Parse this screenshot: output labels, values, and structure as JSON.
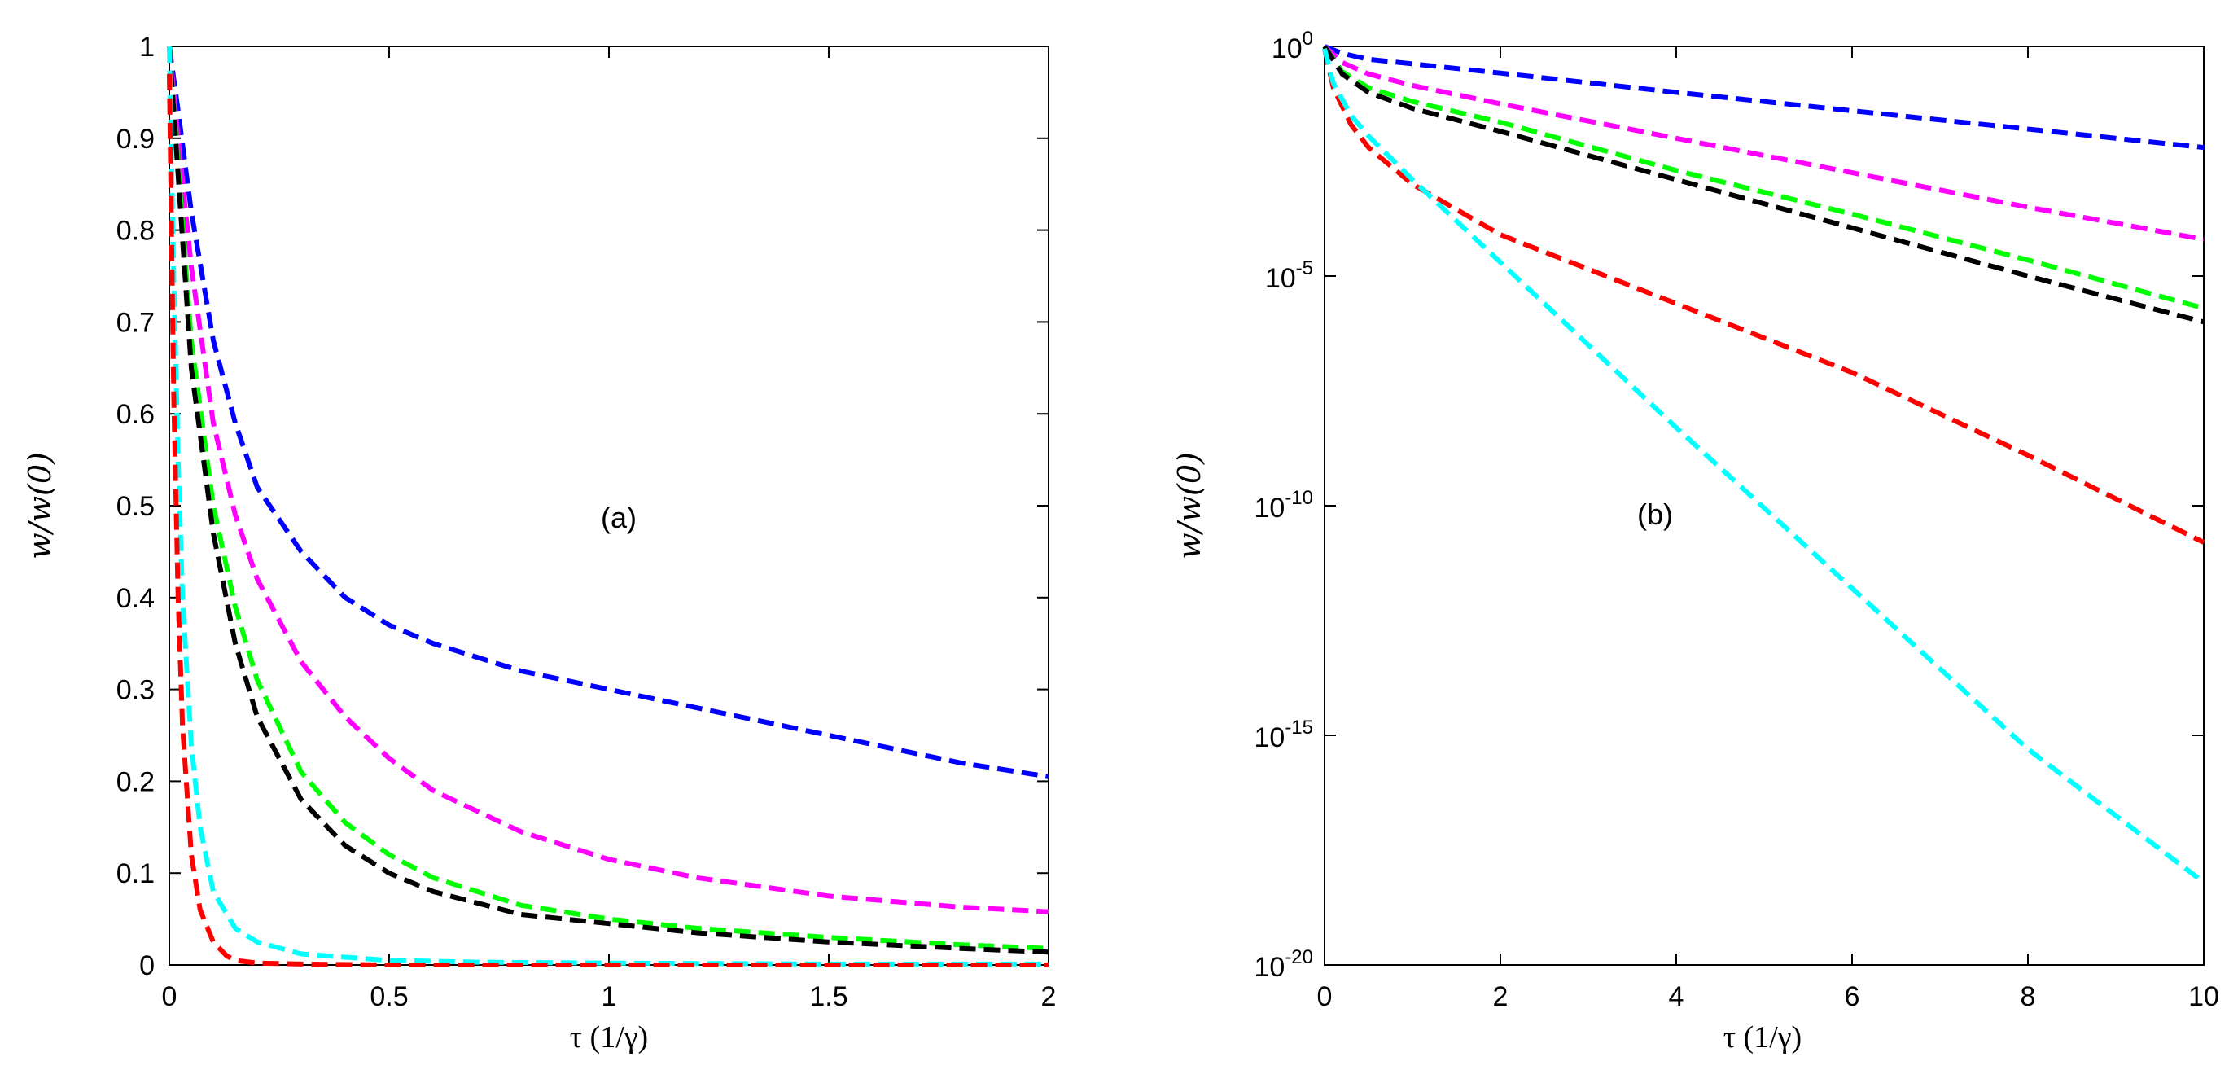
{
  "chart_data": [
    {
      "type": "line",
      "panel": "a",
      "annotation": "(a)",
      "xlabel": "τ (1/γ)",
      "ylabel": "w/w(0)",
      "yscale": "linear",
      "xlim": [
        0,
        2
      ],
      "ylim": [
        0,
        1
      ],
      "xticks": [
        0,
        0.5,
        1,
        1.5,
        2
      ],
      "xtick_labels": [
        "0",
        "0.5",
        "1",
        "1.5",
        "2"
      ],
      "yticks": [
        0,
        0.1,
        0.2,
        0.3,
        0.4,
        0.5,
        0.6,
        0.7,
        0.8,
        0.9,
        1
      ],
      "ytick_labels": [
        "0",
        "0.1",
        "0.2",
        "0.3",
        "0.4",
        "0.5",
        "0.6",
        "0.7",
        "0.8",
        "0.9",
        "1"
      ],
      "series": [
        {
          "name": "blue",
          "color": "#0000ff",
          "x": [
            0,
            0.02,
            0.05,
            0.1,
            0.15,
            0.2,
            0.3,
            0.4,
            0.5,
            0.6,
            0.8,
            1.0,
            1.2,
            1.5,
            1.8,
            2.0
          ],
          "y": [
            1.0,
            0.93,
            0.82,
            0.68,
            0.59,
            0.52,
            0.45,
            0.4,
            0.37,
            0.35,
            0.32,
            0.3,
            0.28,
            0.25,
            0.22,
            0.205
          ]
        },
        {
          "name": "magenta",
          "color": "#ff00ff",
          "x": [
            0,
            0.02,
            0.05,
            0.1,
            0.15,
            0.2,
            0.3,
            0.4,
            0.5,
            0.6,
            0.8,
            1.0,
            1.2,
            1.5,
            1.8,
            2.0
          ],
          "y": [
            1.0,
            0.9,
            0.76,
            0.59,
            0.49,
            0.42,
            0.33,
            0.27,
            0.225,
            0.19,
            0.145,
            0.115,
            0.095,
            0.075,
            0.063,
            0.058
          ]
        },
        {
          "name": "green",
          "color": "#00ff00",
          "x": [
            0,
            0.02,
            0.05,
            0.1,
            0.15,
            0.2,
            0.3,
            0.4,
            0.5,
            0.6,
            0.8,
            1.0,
            1.2,
            1.5,
            1.8,
            2.0
          ],
          "y": [
            1.0,
            0.87,
            0.68,
            0.5,
            0.39,
            0.31,
            0.21,
            0.155,
            0.12,
            0.095,
            0.065,
            0.05,
            0.04,
            0.03,
            0.022,
            0.018
          ]
        },
        {
          "name": "black",
          "color": "#000000",
          "x": [
            0,
            0.02,
            0.05,
            0.1,
            0.15,
            0.2,
            0.3,
            0.4,
            0.5,
            0.6,
            0.8,
            1.0,
            1.2,
            1.5,
            1.8,
            2.0
          ],
          "y": [
            1.0,
            0.86,
            0.65,
            0.47,
            0.35,
            0.27,
            0.18,
            0.13,
            0.1,
            0.08,
            0.055,
            0.045,
            0.035,
            0.025,
            0.018,
            0.014
          ]
        },
        {
          "name": "cyan",
          "color": "#00ffff",
          "x": [
            0,
            0.01,
            0.02,
            0.03,
            0.05,
            0.07,
            0.1,
            0.15,
            0.2,
            0.3,
            0.5,
            0.7,
            1.0,
            1.5,
            2.0
          ],
          "y": [
            1.0,
            0.75,
            0.55,
            0.4,
            0.24,
            0.15,
            0.08,
            0.04,
            0.025,
            0.012,
            0.005,
            0.003,
            0.002,
            0.001,
            0.001
          ]
        },
        {
          "name": "red",
          "color": "#ff0000",
          "x": [
            0,
            0.01,
            0.02,
            0.03,
            0.05,
            0.07,
            0.1,
            0.13,
            0.15,
            0.2,
            0.3,
            0.5,
            1.0,
            1.5,
            2.0
          ],
          "y": [
            0.97,
            0.62,
            0.4,
            0.26,
            0.12,
            0.06,
            0.025,
            0.01,
            0.005,
            0.002,
            0.001,
            0.0,
            0.0,
            0.0,
            0.0
          ]
        }
      ]
    },
    {
      "type": "line",
      "panel": "b",
      "annotation": "(b)",
      "xlabel": "τ (1/γ)",
      "ylabel": "w/w(0)",
      "yscale": "log",
      "xlim": [
        0,
        10
      ],
      "ylim_exp": [
        -20,
        0
      ],
      "xticks": [
        0,
        2,
        4,
        6,
        8,
        10
      ],
      "xtick_labels": [
        "0",
        "2",
        "4",
        "6",
        "8",
        "10"
      ],
      "yticks_exp": [
        0,
        -5,
        -10,
        -15,
        -20
      ],
      "ytick_base": "10",
      "ytick_exponents": [
        "0",
        "-5",
        "-10",
        "-15",
        "-20"
      ],
      "series": [
        {
          "name": "blue",
          "color": "#0000ff",
          "x": [
            0,
            0.2,
            0.5,
            1,
            2,
            4,
            6,
            8,
            10
          ],
          "log10y": [
            0,
            -0.15,
            -0.28,
            -0.38,
            -0.58,
            -1.0,
            -1.4,
            -1.8,
            -2.2
          ]
        },
        {
          "name": "magenta",
          "color": "#ff00ff",
          "x": [
            0,
            0.2,
            0.5,
            1,
            2,
            4,
            6,
            8,
            10
          ],
          "log10y": [
            0,
            -0.35,
            -0.6,
            -0.85,
            -1.25,
            -2.0,
            -2.75,
            -3.5,
            -4.2
          ]
        },
        {
          "name": "green",
          "color": "#00ff00",
          "x": [
            0,
            0.2,
            0.5,
            1,
            2,
            4,
            6,
            8,
            10
          ],
          "log10y": [
            0,
            -0.55,
            -0.9,
            -1.2,
            -1.65,
            -2.7,
            -3.65,
            -4.65,
            -5.7
          ]
        },
        {
          "name": "black",
          "color": "#000000",
          "x": [
            0,
            0.2,
            0.5,
            1,
            2,
            4,
            6,
            8,
            10
          ],
          "log10y": [
            0,
            -0.6,
            -1.0,
            -1.35,
            -1.85,
            -2.9,
            -3.95,
            -5.0,
            -6.0
          ]
        },
        {
          "name": "red",
          "color": "#ff0000",
          "x": [
            0,
            0.1,
            0.3,
            0.5,
            1,
            2,
            4,
            6,
            8,
            10
          ],
          "log10y": [
            -0.05,
            -0.9,
            -1.7,
            -2.2,
            -3.0,
            -4.1,
            -5.6,
            -7.1,
            -8.9,
            -10.8
          ]
        },
        {
          "name": "cyan",
          "color": "#00ffff",
          "x": [
            0,
            0.1,
            0.3,
            0.5,
            1,
            2,
            4,
            6,
            8,
            10
          ],
          "log10y": [
            -0.05,
            -0.8,
            -1.5,
            -1.95,
            -2.9,
            -4.7,
            -8.3,
            -11.8,
            -15.3,
            -18.2
          ]
        }
      ]
    }
  ]
}
